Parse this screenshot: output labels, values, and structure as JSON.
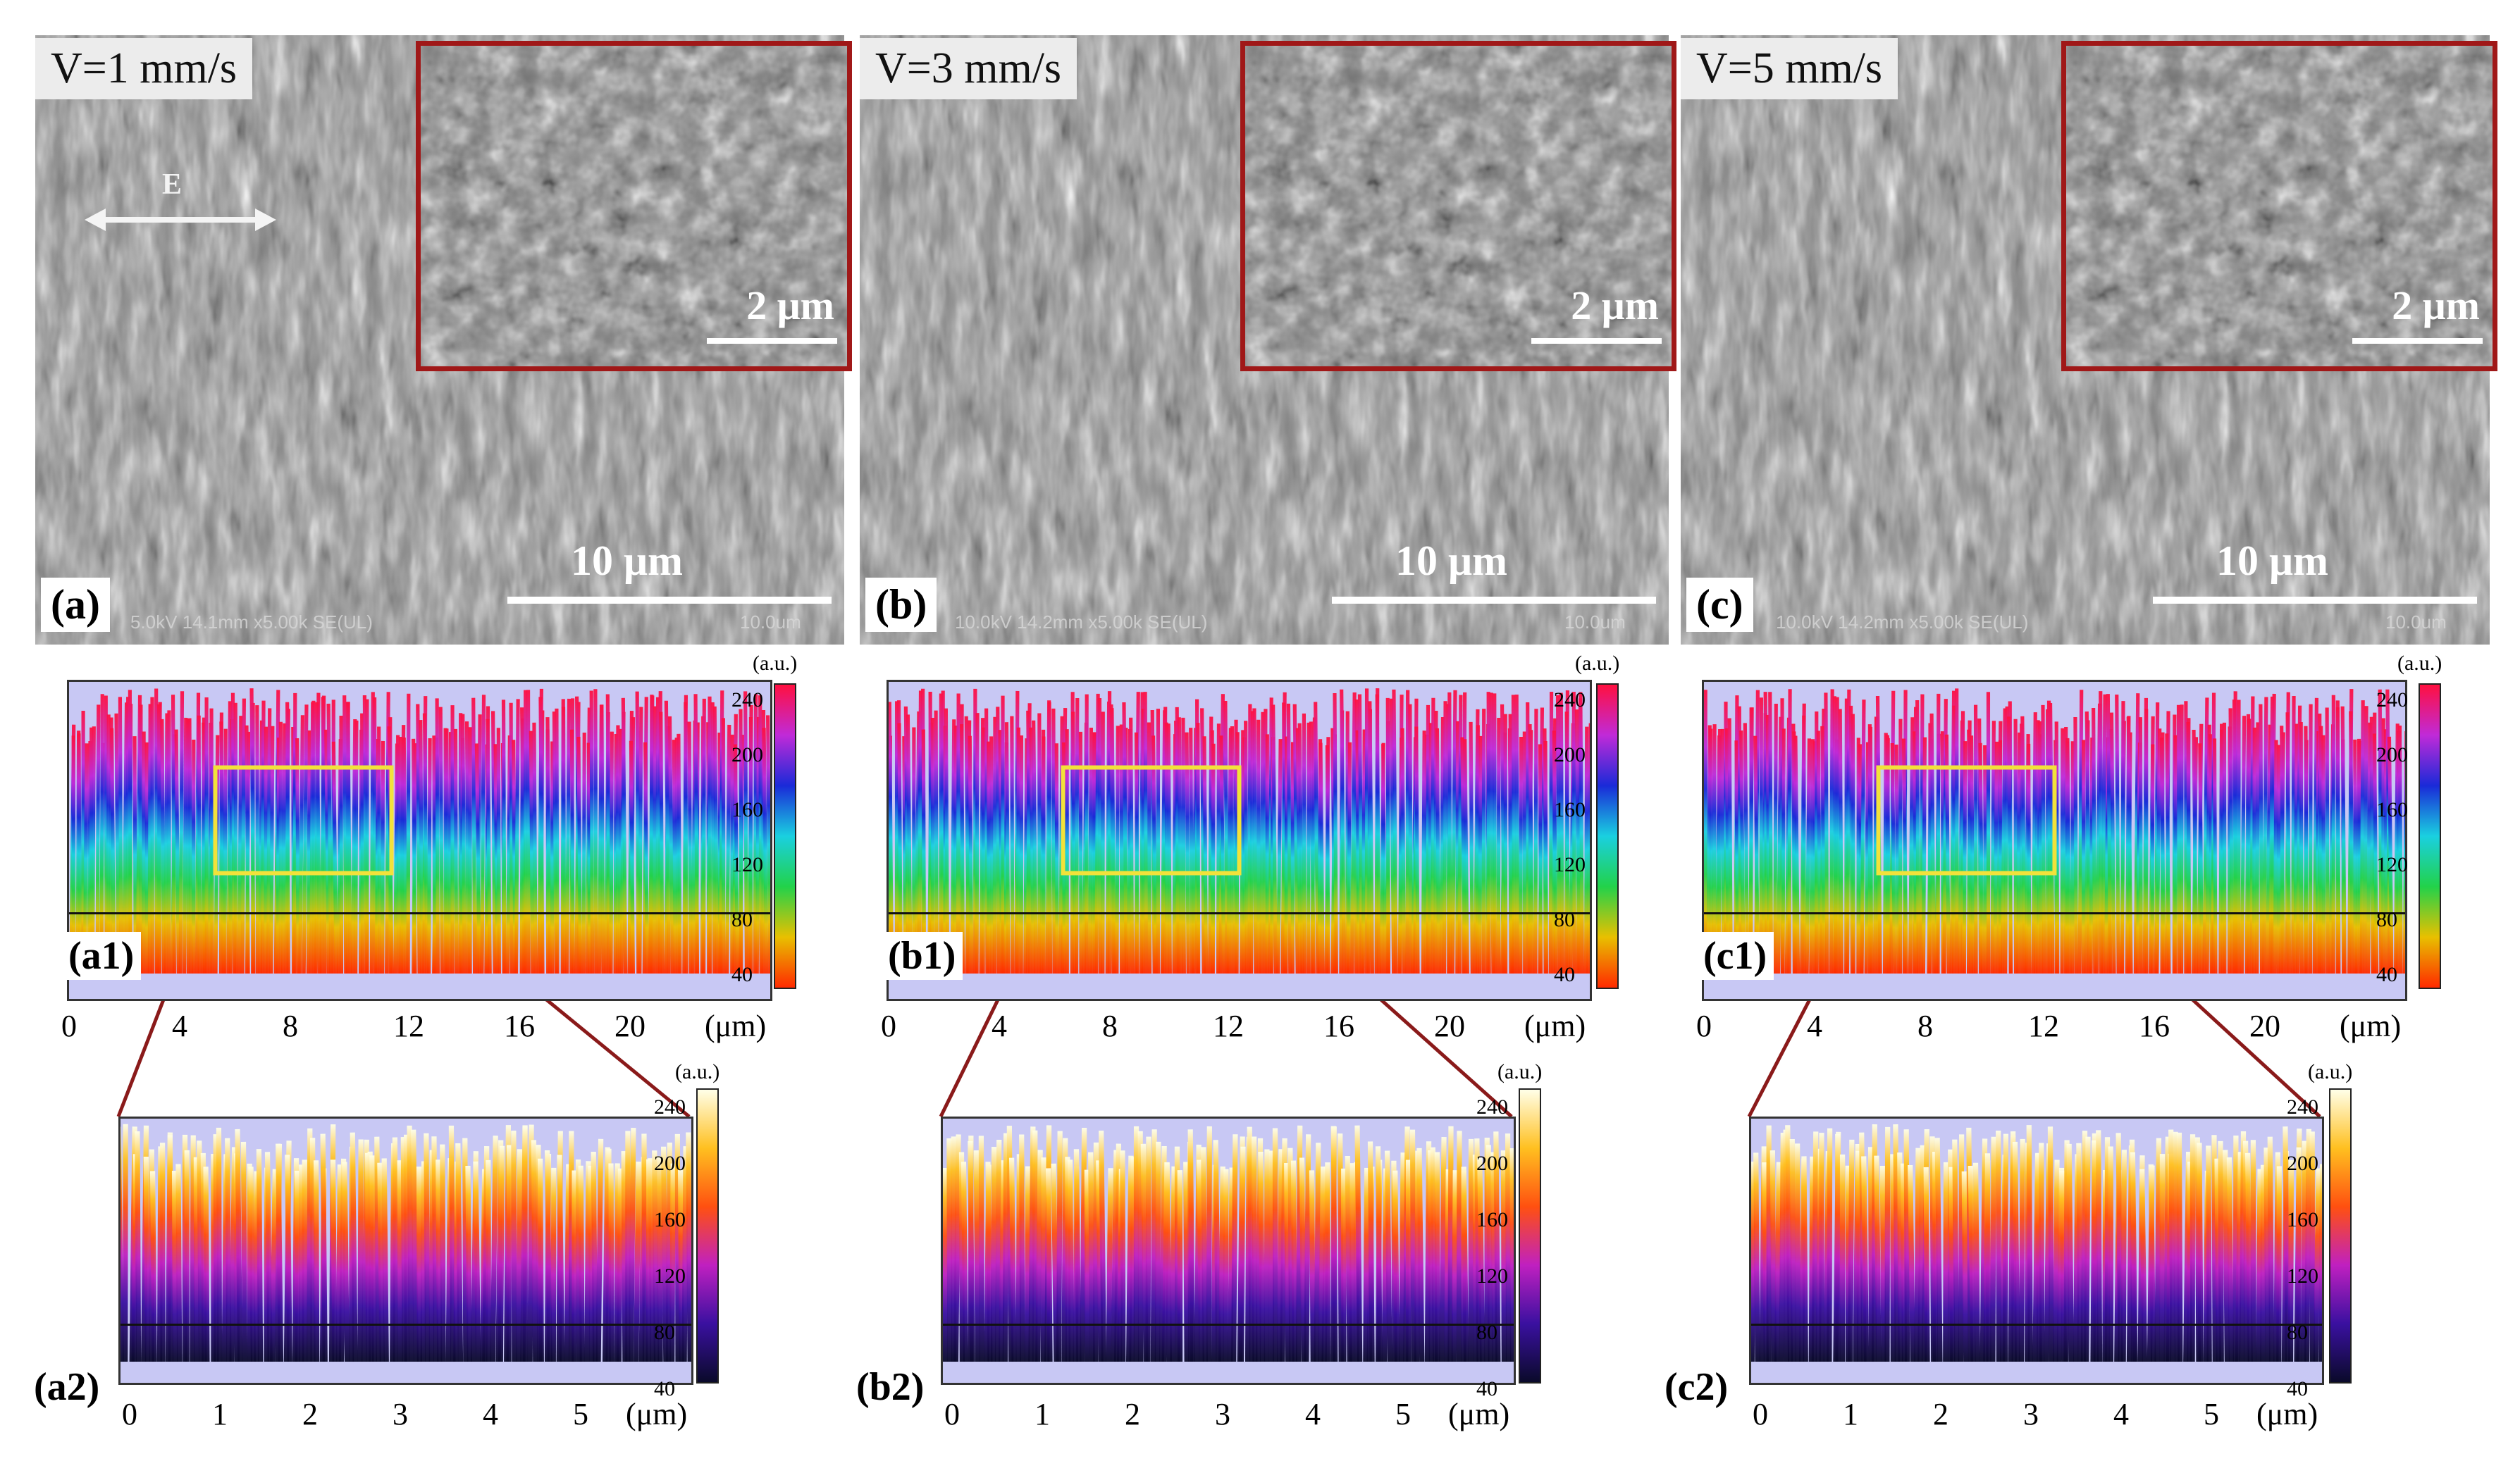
{
  "panels": [
    {
      "id": "a",
      "speed": "V=1 mm/s",
      "label": "(a)",
      "inset_scale": "2 μm",
      "scale": "10 μm",
      "footer": "5.0kV 14.1mm x5.00k SE(UL)",
      "footer_right": "10.0um",
      "arrow": "E"
    },
    {
      "id": "b",
      "speed": "V=3 mm/s",
      "label": "(b)",
      "inset_scale": "2 μm",
      "scale": "10 μm",
      "footer": "10.0kV 14.2mm x5.00k SE(UL)",
      "footer_right": "10.0um"
    },
    {
      "id": "c",
      "speed": "V=5 mm/s",
      "label": "(c)",
      "inset_scale": "2 μm",
      "scale": "10 μm",
      "footer": "10.0kV 14.2mm x5.00k SE(UL)",
      "footer_right": "10.0um"
    }
  ],
  "maps1": [
    {
      "label": "(a1)"
    },
    {
      "label": "(b1)"
    },
    {
      "label": "(c1)"
    }
  ],
  "maps2": [
    {
      "label": "(a2)"
    },
    {
      "label": "(b2)"
    },
    {
      "label": "(c2)"
    }
  ],
  "colorbar": {
    "unit": "(a.u.)",
    "ticks": [
      "240",
      "200",
      "160",
      "120",
      "80",
      "40"
    ]
  },
  "axis1": {
    "ticks": [
      "0",
      "4",
      "8",
      "12",
      "16",
      "20"
    ],
    "unit": "(μm)"
  },
  "axis2": {
    "ticks": [
      "0",
      "1",
      "2",
      "3",
      "4",
      "5"
    ],
    "unit": "(μm)"
  },
  "colors": {
    "inset_border": "#a01818",
    "selection_box": "#f2e23a",
    "zoom_line": "#8a1a1a"
  }
}
